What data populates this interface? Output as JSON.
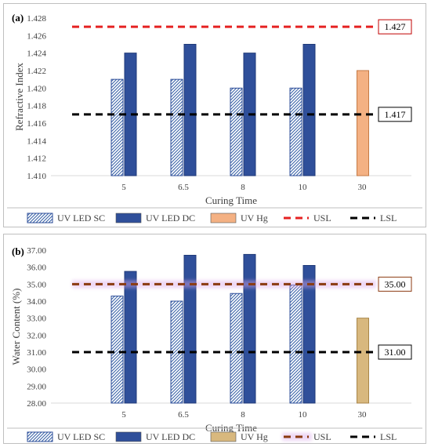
{
  "colors": {
    "led_sc": "#a9c4e0",
    "led_dc": "#2f4f9a",
    "hg_a": "#f4b183",
    "hg_b": "#d8b87e",
    "usl_a": "#e52222",
    "usl_b": "#8b3a10",
    "lsl": "#000000",
    "usl_box_a": "#c00000",
    "usl_box_b": "#8b3a10",
    "grid": "#d9d9d9",
    "glow": "#d9a6e8"
  },
  "chart_data": [
    {
      "type": "bar",
      "panel_label": "(a)",
      "categories": [
        "5",
        "6.5",
        "8",
        "10",
        "30"
      ],
      "series": [
        {
          "name": "UV LED SC",
          "values": [
            1.421,
            1.421,
            1.42,
            1.42,
            null
          ],
          "style": "hatch"
        },
        {
          "name": "UV LED DC",
          "values": [
            1.424,
            1.425,
            1.424,
            1.425,
            null
          ],
          "style": "solid"
        },
        {
          "name": "UV Hg",
          "values": [
            null,
            null,
            null,
            null,
            1.422
          ],
          "style": "solid"
        }
      ],
      "reference_lines": [
        {
          "name": "USL",
          "value": 1.427,
          "label": "1.427"
        },
        {
          "name": "LSL",
          "value": 1.417,
          "label": "1.417"
        }
      ],
      "xlabel": "Curing Time",
      "ylabel": "Refractive Index",
      "ylim": [
        1.41,
        1.428
      ],
      "yticks": [
        "1.410",
        "1.412",
        "1.414",
        "1.416",
        "1.418",
        "1.420",
        "1.422",
        "1.424",
        "1.426",
        "1.428"
      ],
      "grid": false,
      "legend": "bottom"
    },
    {
      "type": "bar",
      "panel_label": "(b)",
      "categories": [
        "5",
        "6.5",
        "8",
        "10",
        "30"
      ],
      "series": [
        {
          "name": "UV LED SC",
          "values": [
            34.3,
            34.0,
            34.45,
            34.95,
            null
          ],
          "style": "hatch"
        },
        {
          "name": "UV LED DC",
          "values": [
            35.75,
            36.7,
            36.75,
            36.1,
            null
          ],
          "style": "solid"
        },
        {
          "name": "UV Hg",
          "values": [
            null,
            null,
            null,
            null,
            33.0
          ],
          "style": "solid"
        }
      ],
      "reference_lines": [
        {
          "name": "USL",
          "value": 35.0,
          "label": "35.00"
        },
        {
          "name": "LSL",
          "value": 31.0,
          "label": "31.00"
        }
      ],
      "xlabel": "Curing Time",
      "ylabel": "Water Content (%)",
      "ylim": [
        28.0,
        37.0
      ],
      "yticks": [
        "28.00",
        "29.00",
        "30.00",
        "31.00",
        "32.00",
        "33.00",
        "34.00",
        "35.00",
        "36.00",
        "37.00"
      ],
      "grid": false,
      "legend": "bottom"
    }
  ]
}
